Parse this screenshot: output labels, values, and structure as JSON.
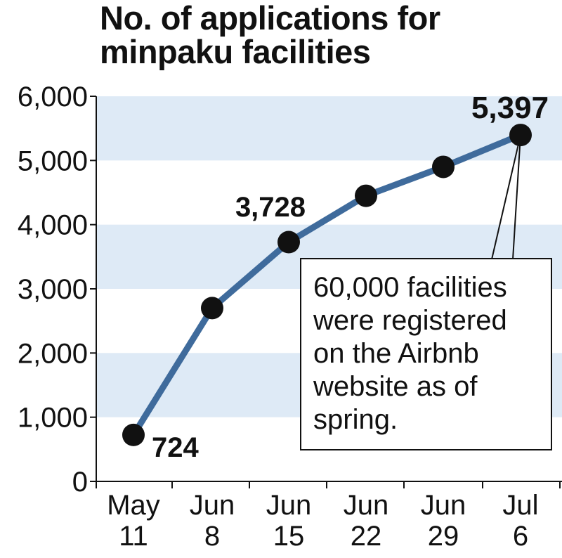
{
  "chart_data": {
    "type": "line",
    "title": "No. of applications for minpaku facilities",
    "title_lines": [
      "No. of applications for",
      "minpaku facilities"
    ],
    "categories": [
      "May 11",
      "Jun 8",
      "Jun 15",
      "Jun 22",
      "Jun 29",
      "Jul 6"
    ],
    "category_lines": [
      [
        "May",
        "11"
      ],
      [
        "Jun",
        "8"
      ],
      [
        "Jun",
        "15"
      ],
      [
        "Jun",
        "22"
      ],
      [
        "Jun",
        "29"
      ],
      [
        "Jul",
        "6"
      ]
    ],
    "values": [
      724,
      2700,
      3728,
      4450,
      4900,
      5397
    ],
    "data_labels": {
      "0": "724",
      "2": "3,728",
      "5": "5,397"
    },
    "ylim": [
      0,
      6000
    ],
    "yticks": [
      "0",
      "1,000",
      "2,000",
      "3,000",
      "4,000",
      "5,000",
      "6,000"
    ],
    "annotation": [
      "60,000 facilities",
      "were registered",
      "on the Airbnb",
      "website as of",
      "spring."
    ],
    "colors": {
      "line": "#3f6b9c",
      "band": "#deeaf6",
      "marker": "#111111"
    }
  }
}
